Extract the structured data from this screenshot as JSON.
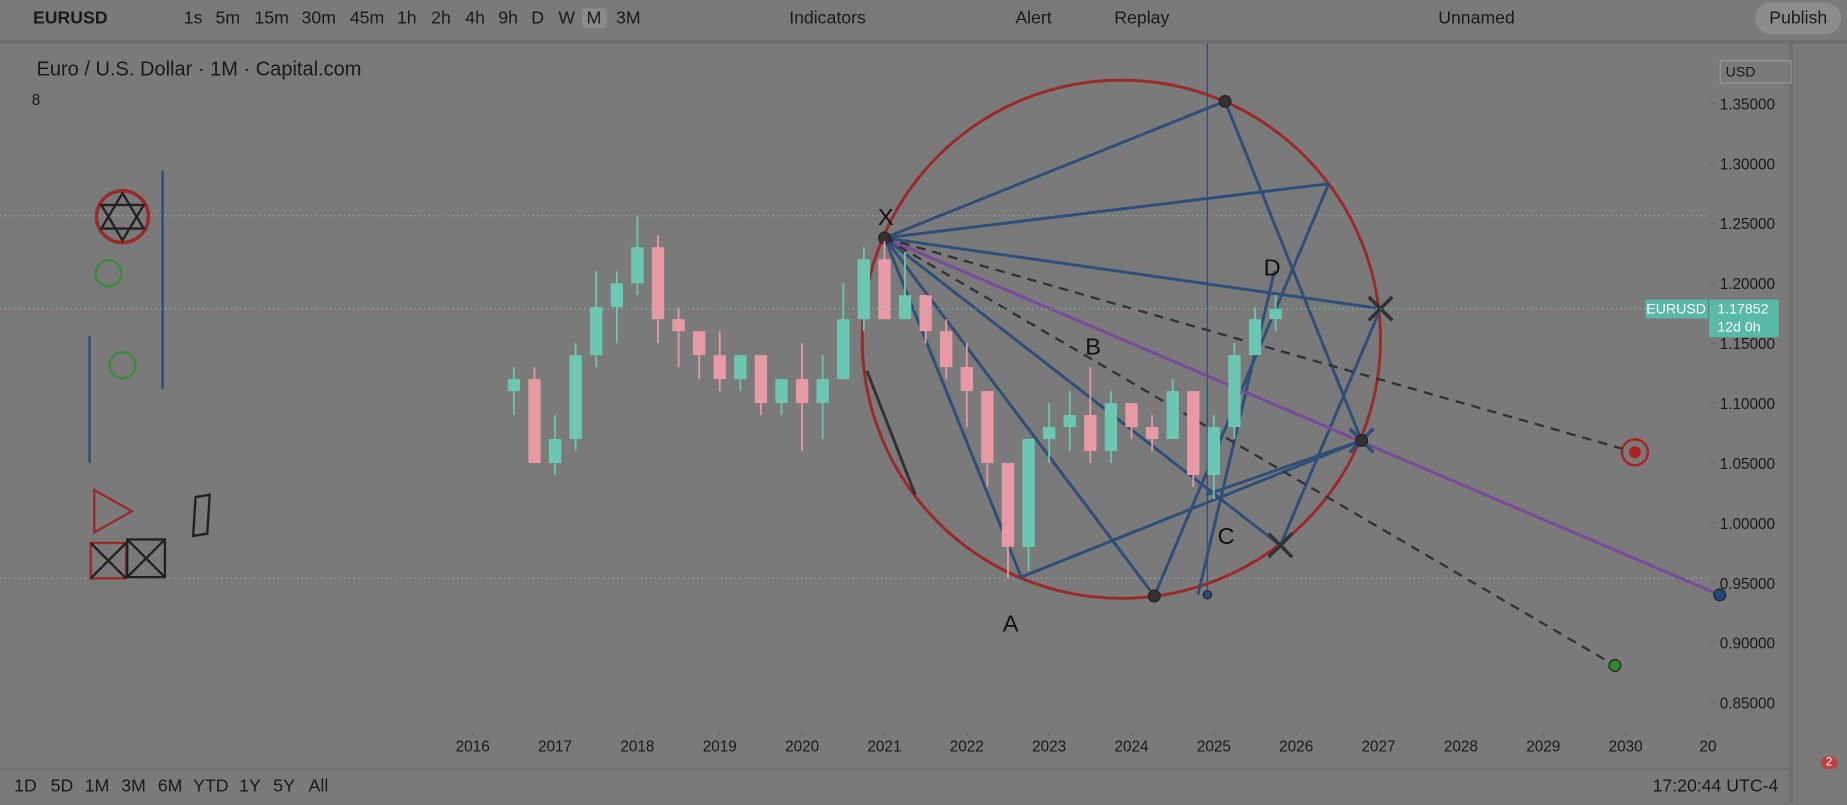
{
  "toolbar": {
    "symbol": "EURUSD",
    "intervals": [
      "1s",
      "5m",
      "15m",
      "30m",
      "45m",
      "1h",
      "2h",
      "4h",
      "9h",
      "D",
      "W",
      "M",
      "3M"
    ],
    "indicators": "Indicators",
    "alert": "Alert",
    "replay": "Replay",
    "layout_name": "Unnamed",
    "publish": "Publish"
  },
  "chart_data": {
    "type": "candlestick",
    "title": "Euro / U.S. Dollar · 1M · Capital.com",
    "indicator_count": 8,
    "currency": "USD",
    "x": [
      2016.5,
      2016.75,
      2017.0,
      2017.25,
      2017.5,
      2017.75,
      2018.0,
      2018.25,
      2018.5,
      2018.75,
      2019.0,
      2019.25,
      2019.5,
      2019.75,
      2020.0,
      2020.25,
      2020.5,
      2020.75,
      2021.0,
      2021.25,
      2021.5,
      2021.75,
      2022.0,
      2022.25,
      2022.5,
      2022.75,
      2023.0,
      2023.25,
      2023.5,
      2023.75,
      2024.0,
      2024.25,
      2024.5,
      2024.75,
      2025.0,
      2025.25,
      2025.5,
      2025.75
    ],
    "open": [
      1.11,
      1.12,
      1.05,
      1.07,
      1.14,
      1.18,
      1.2,
      1.23,
      1.17,
      1.16,
      1.14,
      1.12,
      1.14,
      1.1,
      1.12,
      1.1,
      1.12,
      1.17,
      1.22,
      1.17,
      1.19,
      1.16,
      1.13,
      1.11,
      1.05,
      0.98,
      1.07,
      1.08,
      1.09,
      1.06,
      1.1,
      1.08,
      1.07,
      1.11,
      1.04,
      1.08,
      1.14,
      1.17
    ],
    "high": [
      1.13,
      1.13,
      1.09,
      1.15,
      1.21,
      1.21,
      1.256,
      1.24,
      1.18,
      1.16,
      1.16,
      1.14,
      1.14,
      1.12,
      1.15,
      1.14,
      1.2,
      1.23,
      1.235,
      1.226,
      1.19,
      1.17,
      1.15,
      1.11,
      1.05,
      1.07,
      1.1,
      1.11,
      1.13,
      1.11,
      1.1,
      1.09,
      1.12,
      1.11,
      1.09,
      1.15,
      1.18,
      1.19
    ],
    "low": [
      1.09,
      1.05,
      1.04,
      1.06,
      1.13,
      1.15,
      1.19,
      1.15,
      1.13,
      1.12,
      1.11,
      1.11,
      1.09,
      1.09,
      1.06,
      1.07,
      1.12,
      1.16,
      1.17,
      1.17,
      1.15,
      1.12,
      1.08,
      1.03,
      0.954,
      0.96,
      1.05,
      1.06,
      1.05,
      1.05,
      1.07,
      1.06,
      1.07,
      1.03,
      1.02,
      1.07,
      1.14,
      1.16
    ],
    "close": [
      1.12,
      1.05,
      1.07,
      1.14,
      1.18,
      1.2,
      1.23,
      1.17,
      1.16,
      1.14,
      1.12,
      1.14,
      1.1,
      1.12,
      1.1,
      1.12,
      1.17,
      1.22,
      1.17,
      1.19,
      1.16,
      1.13,
      1.11,
      1.05,
      0.98,
      1.07,
      1.08,
      1.09,
      1.06,
      1.1,
      1.08,
      1.07,
      1.11,
      1.04,
      1.08,
      1.14,
      1.17,
      1.17852
    ],
    "up_color": "#6cc7b2",
    "down_color": "#e79aa4",
    "xlim": [
      2010.26,
      2031.0
    ],
    "xticks": [
      2016,
      2017,
      2018,
      2019,
      2020,
      2021,
      2022,
      2023,
      2024,
      2025,
      2026,
      2027,
      2028,
      2029,
      2030,
      {
        "value": 2031,
        "label": "20"
      }
    ],
    "ylim": [
      0.827,
      1.397
    ],
    "yticks": [
      {
        "value": 1.35,
        "label": "1.35000"
      },
      {
        "value": 1.3,
        "label": "1.30000"
      },
      {
        "value": 1.25,
        "label": "1.25000"
      },
      {
        "value": 1.2,
        "label": "1.20000"
      },
      {
        "value": 1.15,
        "label": "1.15000"
      },
      {
        "value": 1.1,
        "label": "1.10000"
      },
      {
        "value": 1.05,
        "label": "1.05000"
      },
      {
        "value": 1.0,
        "label": "1.00000"
      },
      {
        "value": 0.95,
        "label": "0.95000"
      },
      {
        "value": 0.9,
        "label": "0.90000"
      },
      {
        "value": 0.85,
        "label": "0.85000"
      }
    ],
    "last_price": {
      "symbol": "EURUSD",
      "value": 1.17852,
      "countdown": "12d 0h"
    },
    "annotations": [
      "X",
      "A",
      "B",
      "C",
      "D"
    ]
  },
  "bottom_bar": {
    "ranges": [
      "1D",
      "5D",
      "1M",
      "3M",
      "6M",
      "YTD",
      "1Y",
      "5Y",
      "All"
    ],
    "clock": "17:20:44 UTC-4",
    "notifications": 2
  }
}
